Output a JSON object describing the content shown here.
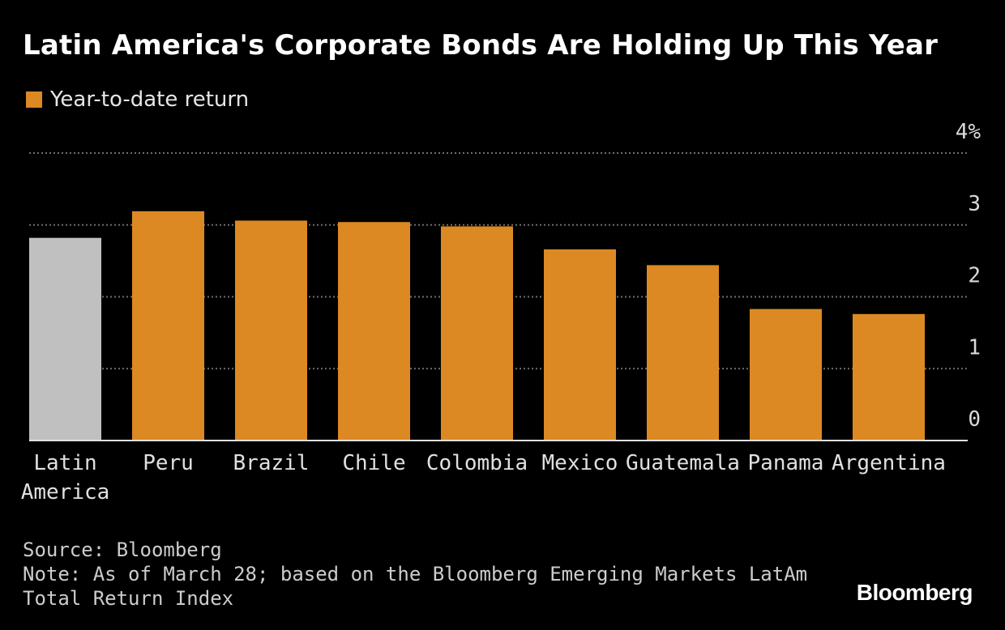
{
  "chart_data": {
    "type": "bar",
    "title": "Latin America's Corporate Bonds Are Holding Up This Year",
    "legend": [
      {
        "label": "Year-to-date return",
        "color": "#dc8923"
      }
    ],
    "categories": [
      "Latin America",
      "Peru",
      "Brazil",
      "Chile",
      "Colombia",
      "Mexico",
      "Guatemala",
      "Panama",
      "Argentina"
    ],
    "values": [
      2.82,
      3.19,
      3.06,
      3.04,
      2.98,
      2.66,
      2.44,
      1.83,
      1.76
    ],
    "bar_colors": [
      "#c0c0c0",
      "#dc8923",
      "#dc8923",
      "#dc8923",
      "#dc8923",
      "#dc8923",
      "#dc8923",
      "#dc8923",
      "#dc8923"
    ],
    "ylim": [
      0,
      4
    ],
    "yticks": [
      0,
      1,
      2,
      3,
      4
    ],
    "ytick_labels": [
      "0",
      "1",
      "2",
      "3",
      "4%"
    ],
    "yaxis_side": "right",
    "grid": "dotted horizontal",
    "legend_position": "top-left"
  },
  "footer": {
    "source": "Source: Bloomberg",
    "note_line1": "Note: As of March 28; based on the Bloomberg Emerging Markets LatAm",
    "note_line2": "Total Return Index"
  },
  "brand": "Bloomberg",
  "colors": {
    "background": "#000000",
    "accent": "#dc8923",
    "highlight": "#c0c0c0",
    "grid": "#6e6e6e"
  }
}
